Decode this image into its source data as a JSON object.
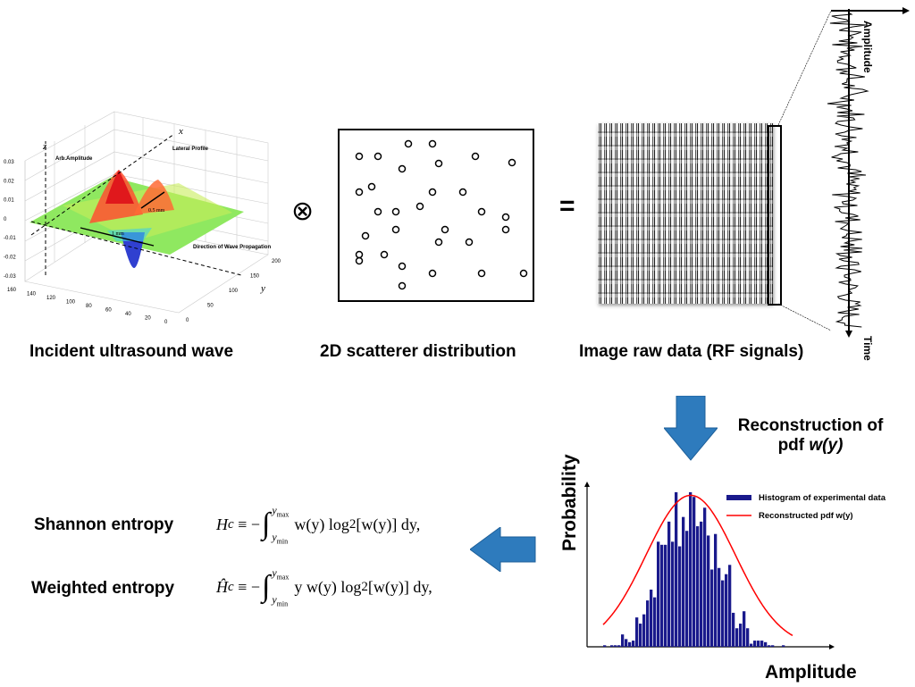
{
  "panel_wave": {
    "caption": "Incident ultrasound wave",
    "z_label": "z",
    "x_label": "x",
    "y_label": "y",
    "amplitude_label": "Arb.Amplitude",
    "lateral_label": "Lateral Profile",
    "propagation_label": "Direction of Wave Propagation",
    "dim_1": "1 mm",
    "dim_2": "0.5 mm",
    "z_ticks": [
      "0.03",
      "0.02",
      "0.01",
      "0",
      "-0.01",
      "-0.02",
      "-0.03"
    ],
    "x_ticks": [
      "160",
      "140",
      "120",
      "100",
      "80",
      "60",
      "40",
      "20",
      "0"
    ],
    "y_ticks": [
      "0",
      "50",
      "100",
      "150",
      "200"
    ]
  },
  "operator_convolve": "⊗",
  "panel_scatter": {
    "caption": "2D scatterer distribution"
  },
  "operator_equals": "=",
  "panel_rf": {
    "caption": "Image raw data (RF signals)",
    "amplitude_label": "Amplitude",
    "time_label": "Time"
  },
  "reconstruction_label": {
    "line1": "Reconstruction of",
    "line2_prefix": "pdf ",
    "line2_italic": "w(y)"
  },
  "entropy": {
    "shannon_label": "Shannon entropy",
    "weighted_label": "Weighted entropy",
    "shannon_formula": {
      "lhs": "H",
      "sub": "c",
      "op": "≡ −",
      "integral": "∫",
      "upper": "y",
      "upper_sub": "max",
      "lower": "y",
      "lower_sub": "min",
      "body": "w(y) log",
      "log_sub": "2",
      "tail": "[w(y)] dy,"
    },
    "weighted_formula": {
      "lhs": "Ĥ",
      "sub": "c",
      "op": "≡ −",
      "integral": "∫",
      "upper": "y",
      "upper_sub": "max",
      "lower": "y",
      "lower_sub": "min",
      "body": "y w(y) log",
      "log_sub": "2",
      "tail": "[w(y)] dy,"
    }
  },
  "colors": {
    "arrow": "#2e7bbd",
    "histogram": "#1a1a8c",
    "pdf_curve": "#ff0000"
  },
  "chart_data": {
    "type": "bar",
    "xlabel": "Amplitude",
    "ylabel": "Probability",
    "legend_position": "top-right",
    "grid": false,
    "series": [
      {
        "name": "Histogram of experimental data",
        "type": "bar",
        "values": [
          0.01,
          0,
          0.01,
          0.01,
          0.01,
          0.08,
          0.05,
          0.03,
          0.04,
          0.19,
          0.15,
          0.21,
          0.3,
          0.37,
          0.32,
          0.68,
          0.66,
          0.66,
          0.81,
          0.68,
          1.0,
          0.65,
          0.84,
          0.75,
          1.0,
          0.97,
          0.78,
          0.81,
          0.9,
          0.72,
          0.5,
          0.73,
          0.51,
          0.43,
          0.47,
          0.53,
          0.22,
          0.12,
          0.15,
          0.23,
          0.12,
          0.02,
          0.04,
          0.04,
          0.04,
          0.03,
          0.01,
          0.01,
          0,
          0,
          0.01
        ]
      },
      {
        "name": "Reconstructed pdf w(y)",
        "type": "line",
        "shape": "gaussian"
      }
    ]
  }
}
